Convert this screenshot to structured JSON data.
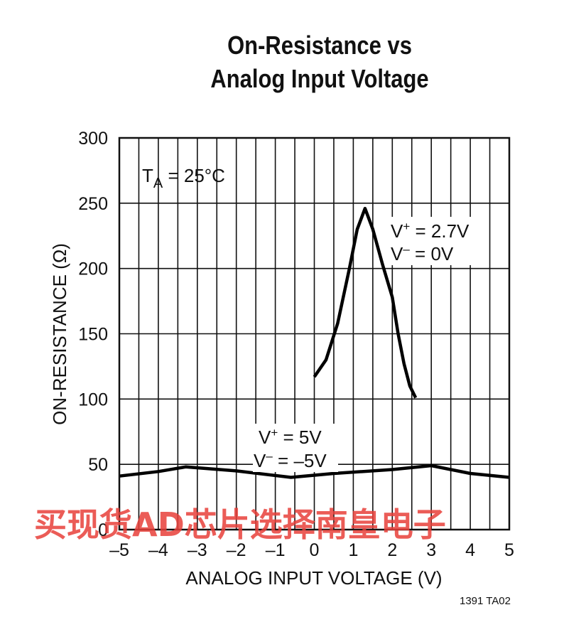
{
  "title_line1": "On-Resistance vs",
  "title_line2": "Analog Input Voltage",
  "figure_code": "1391 TA02",
  "watermark": "买现货AD芯片选择南皇电子",
  "chart_data": {
    "type": "line",
    "xlabel": "ANALOG INPUT VOLTAGE (V)",
    "ylabel": "ON-RESISTANCE (Ω)",
    "xlim": [
      -5,
      5
    ],
    "ylim": [
      0,
      300
    ],
    "x_ticks": [
      -5,
      -4,
      -3,
      -2,
      -1,
      0,
      1,
      2,
      3,
      4,
      5
    ],
    "x_tick_labels": [
      "–5",
      "–4",
      "–3",
      "–2",
      "–1",
      "0",
      "1",
      "2",
      "3",
      "4",
      "5"
    ],
    "y_ticks": [
      0,
      50,
      100,
      150,
      200,
      250,
      300
    ],
    "y_tick_labels": [
      "0",
      "50",
      "100",
      "150",
      "200",
      "250",
      "300"
    ],
    "grid": true,
    "annotation_temp": {
      "t": "T",
      "sub": "A",
      "rest": " = 25°C"
    },
    "series": [
      {
        "label_lines": [
          {
            "base": "V",
            "sup": "+",
            "rest": " = 2.7V"
          },
          {
            "base": "V",
            "sup": "–",
            "rest": " = 0V"
          }
        ],
        "x": [
          0,
          0.3,
          0.6,
          0.9,
          1.1,
          1.3,
          1.5,
          1.75,
          2.0,
          2.15,
          2.3,
          2.45,
          2.6
        ],
        "y": [
          117,
          130,
          158,
          200,
          230,
          246,
          230,
          203,
          178,
          150,
          127,
          110,
          101
        ]
      },
      {
        "label_lines": [
          {
            "base": "V",
            "sup": "+",
            "rest": " = 5V"
          },
          {
            "base": "V",
            "sup": "–",
            "rest": " = –5V"
          }
        ],
        "x": [
          -5,
          -4,
          -3.3,
          -2,
          -0.6,
          0.5,
          2.0,
          3.0,
          4.0,
          5.0
        ],
        "y": [
          41,
          44.5,
          48,
          45,
          40,
          43,
          46,
          49,
          43,
          40
        ]
      }
    ]
  }
}
